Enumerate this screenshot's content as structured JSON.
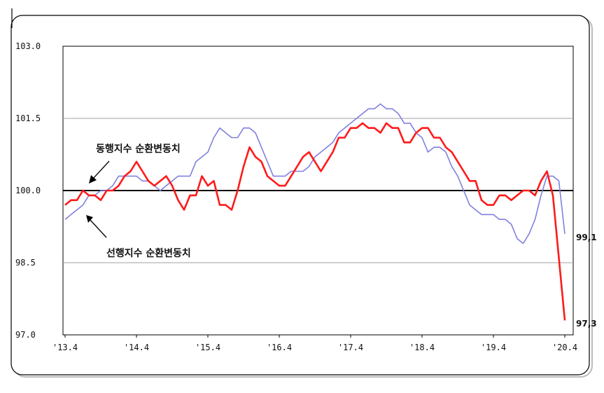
{
  "chart_data": {
    "type": "line",
    "title": "",
    "xlabel": "",
    "ylabel": "",
    "ylim": [
      97.0,
      103.0
    ],
    "yticks": [
      "103.0",
      "101.5",
      "100.0",
      "98.5",
      "97.0"
    ],
    "xticks": [
      "'13.4",
      "'14.4",
      "'15.4",
      "'16.4",
      "'17.4",
      "'18.4",
      "'19.4",
      "'20.4"
    ],
    "reference_line": 100.0,
    "grid": "horizontal",
    "annotations": {
      "coincident": "동행지수 순환변동치",
      "leading": "선행지수 순환변동치"
    },
    "end_labels": {
      "coincident": "97,3",
      "leading": "99,1"
    },
    "colors": {
      "coincident": "#ff1a1a",
      "leading": "#8080e0",
      "reference": "#000000",
      "grid": "#a0a0a0"
    },
    "series": [
      {
        "key": "coincident",
        "values": [
          99.7,
          99.8,
          99.8,
          100.0,
          99.9,
          99.9,
          99.8,
          100.0,
          100.0,
          100.1,
          100.3,
          100.4,
          100.6,
          100.4,
          100.2,
          100.1,
          100.2,
          100.3,
          100.1,
          99.8,
          99.6,
          99.9,
          99.9,
          100.3,
          100.1,
          100.2,
          99.7,
          99.7,
          99.6,
          100.0,
          100.5,
          100.9,
          100.7,
          100.6,
          100.3,
          100.2,
          100.1,
          100.1,
          100.3,
          100.5,
          100.7,
          100.8,
          100.6,
          100.4,
          100.6,
          100.8,
          101.1,
          101.1,
          101.3,
          101.3,
          101.4,
          101.3,
          101.3,
          101.2,
          101.4,
          101.3,
          101.3,
          101.0,
          101.0,
          101.2,
          101.3,
          101.3,
          101.1,
          101.1,
          100.9,
          100.8,
          100.6,
          100.4,
          100.2,
          100.2,
          99.8,
          99.7,
          99.7,
          99.9,
          99.9,
          99.8,
          99.9,
          100.0,
          100.0,
          99.9,
          100.2,
          100.4,
          99.9,
          98.6,
          97.3
        ]
      },
      {
        "key": "leading",
        "values": [
          99.4,
          99.5,
          99.6,
          99.7,
          99.9,
          99.9,
          100.0,
          100.0,
          100.1,
          100.3,
          100.3,
          100.3,
          100.3,
          100.2,
          100.2,
          100.1,
          100.0,
          100.1,
          100.2,
          100.3,
          100.3,
          100.3,
          100.6,
          100.7,
          100.8,
          101.1,
          101.3,
          101.2,
          101.1,
          101.1,
          101.3,
          101.3,
          101.2,
          100.9,
          100.6,
          100.3,
          100.3,
          100.3,
          100.4,
          100.4,
          100.4,
          100.5,
          100.7,
          100.8,
          100.9,
          101.0,
          101.2,
          101.3,
          101.4,
          101.5,
          101.6,
          101.7,
          101.7,
          101.8,
          101.7,
          101.7,
          101.6,
          101.4,
          101.4,
          101.2,
          101.1,
          100.8,
          100.9,
          100.9,
          100.8,
          100.5,
          100.3,
          100.0,
          99.7,
          99.6,
          99.5,
          99.5,
          99.5,
          99.4,
          99.4,
          99.3,
          99.0,
          98.9,
          99.1,
          99.4,
          99.9,
          100.3,
          100.3,
          100.2,
          99.1
        ]
      }
    ]
  }
}
